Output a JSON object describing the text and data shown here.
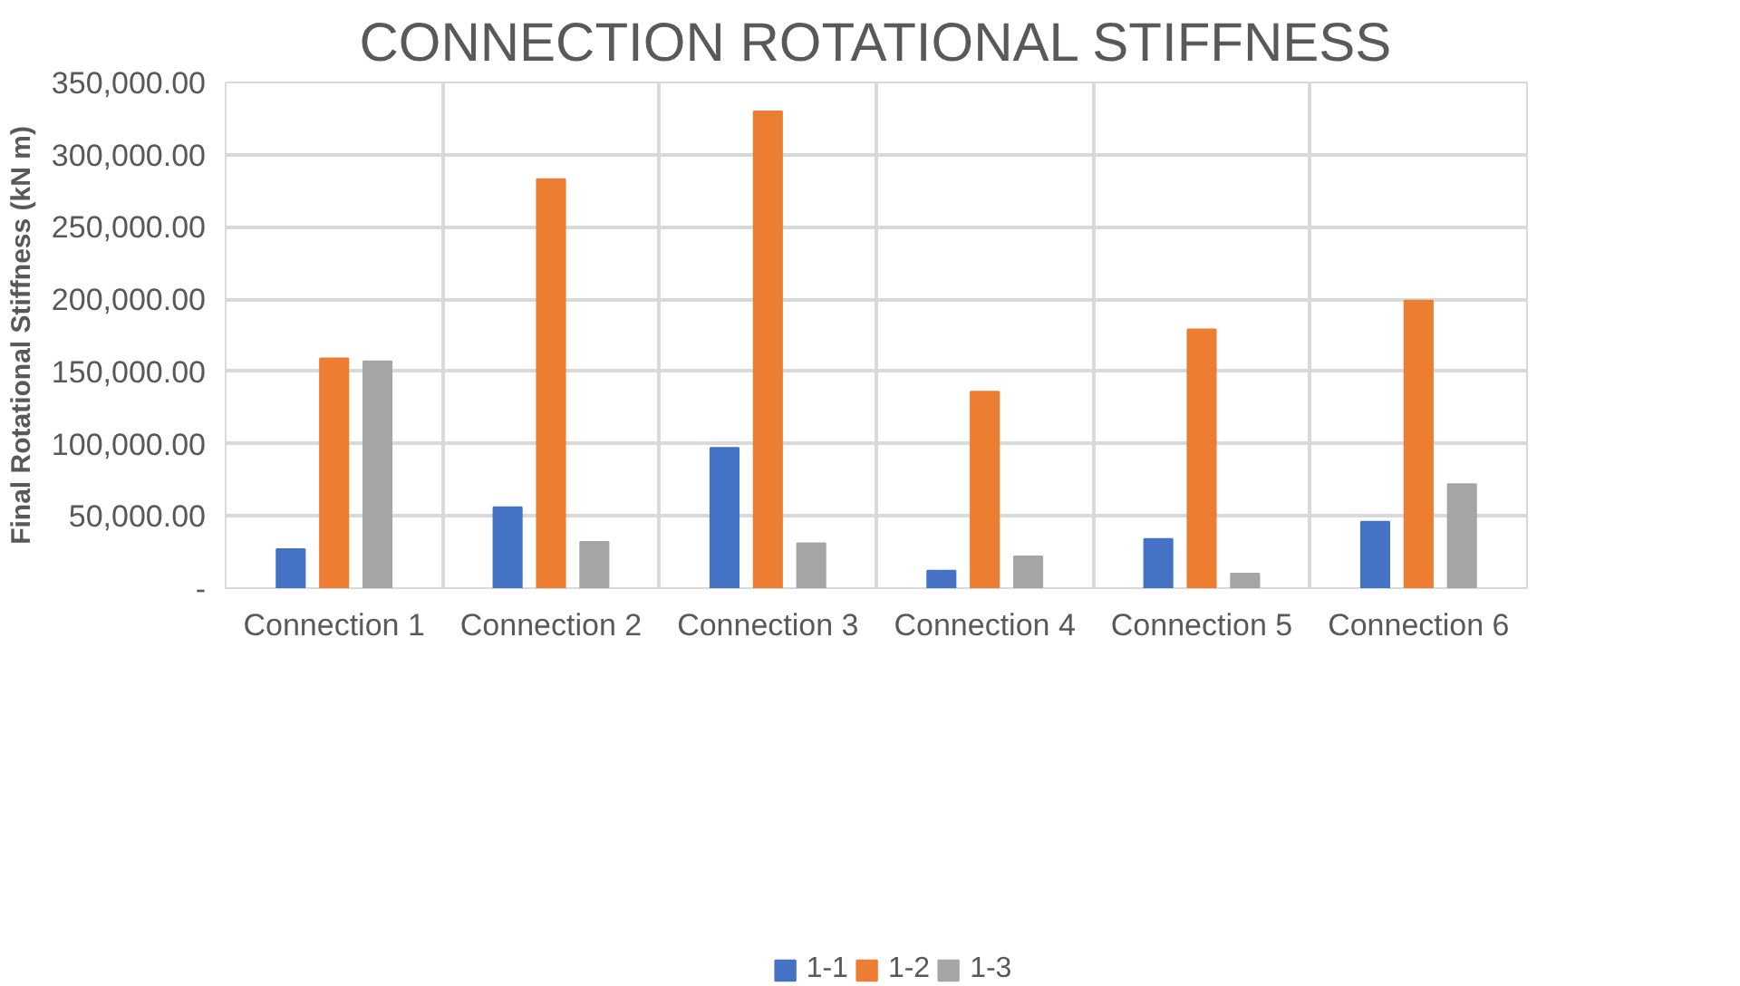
{
  "chart_data": {
    "type": "bar",
    "title": "CONNECTION ROTATIONAL STIFFNESS",
    "ylabel": "Final Rotational Stiffness (kN m)",
    "categories": [
      "Connection 1",
      "Connection 2",
      "Connection 3",
      "Connection 4",
      "Connection 5",
      "Connection 6"
    ],
    "series": [
      {
        "name": "1-1",
        "color": "#4472c4",
        "values": [
          27000,
          56000,
          97000,
          12000,
          34000,
          46000
        ]
      },
      {
        "name": "1-2",
        "color": "#ed7d31",
        "values": [
          159000,
          283000,
          330000,
          136000,
          179000,
          199000
        ]
      },
      {
        "name": "1-3",
        "color": "#a5a5a5",
        "values": [
          157000,
          32000,
          31000,
          22000,
          10000,
          72000
        ]
      }
    ],
    "ylim": [
      0,
      350000
    ],
    "yticks": [
      {
        "value": 0,
        "label": "-"
      },
      {
        "value": 50000,
        "label": "50,000.00"
      },
      {
        "value": 100000,
        "label": "100,000.00"
      },
      {
        "value": 150000,
        "label": "150,000.00"
      },
      {
        "value": 200000,
        "label": "200,000.00"
      },
      {
        "value": 250000,
        "label": "250,000.00"
      },
      {
        "value": 300000,
        "label": "300,000.00"
      },
      {
        "value": 350000,
        "label": "350,000.00"
      }
    ],
    "grid": true,
    "legend": "bottom"
  }
}
